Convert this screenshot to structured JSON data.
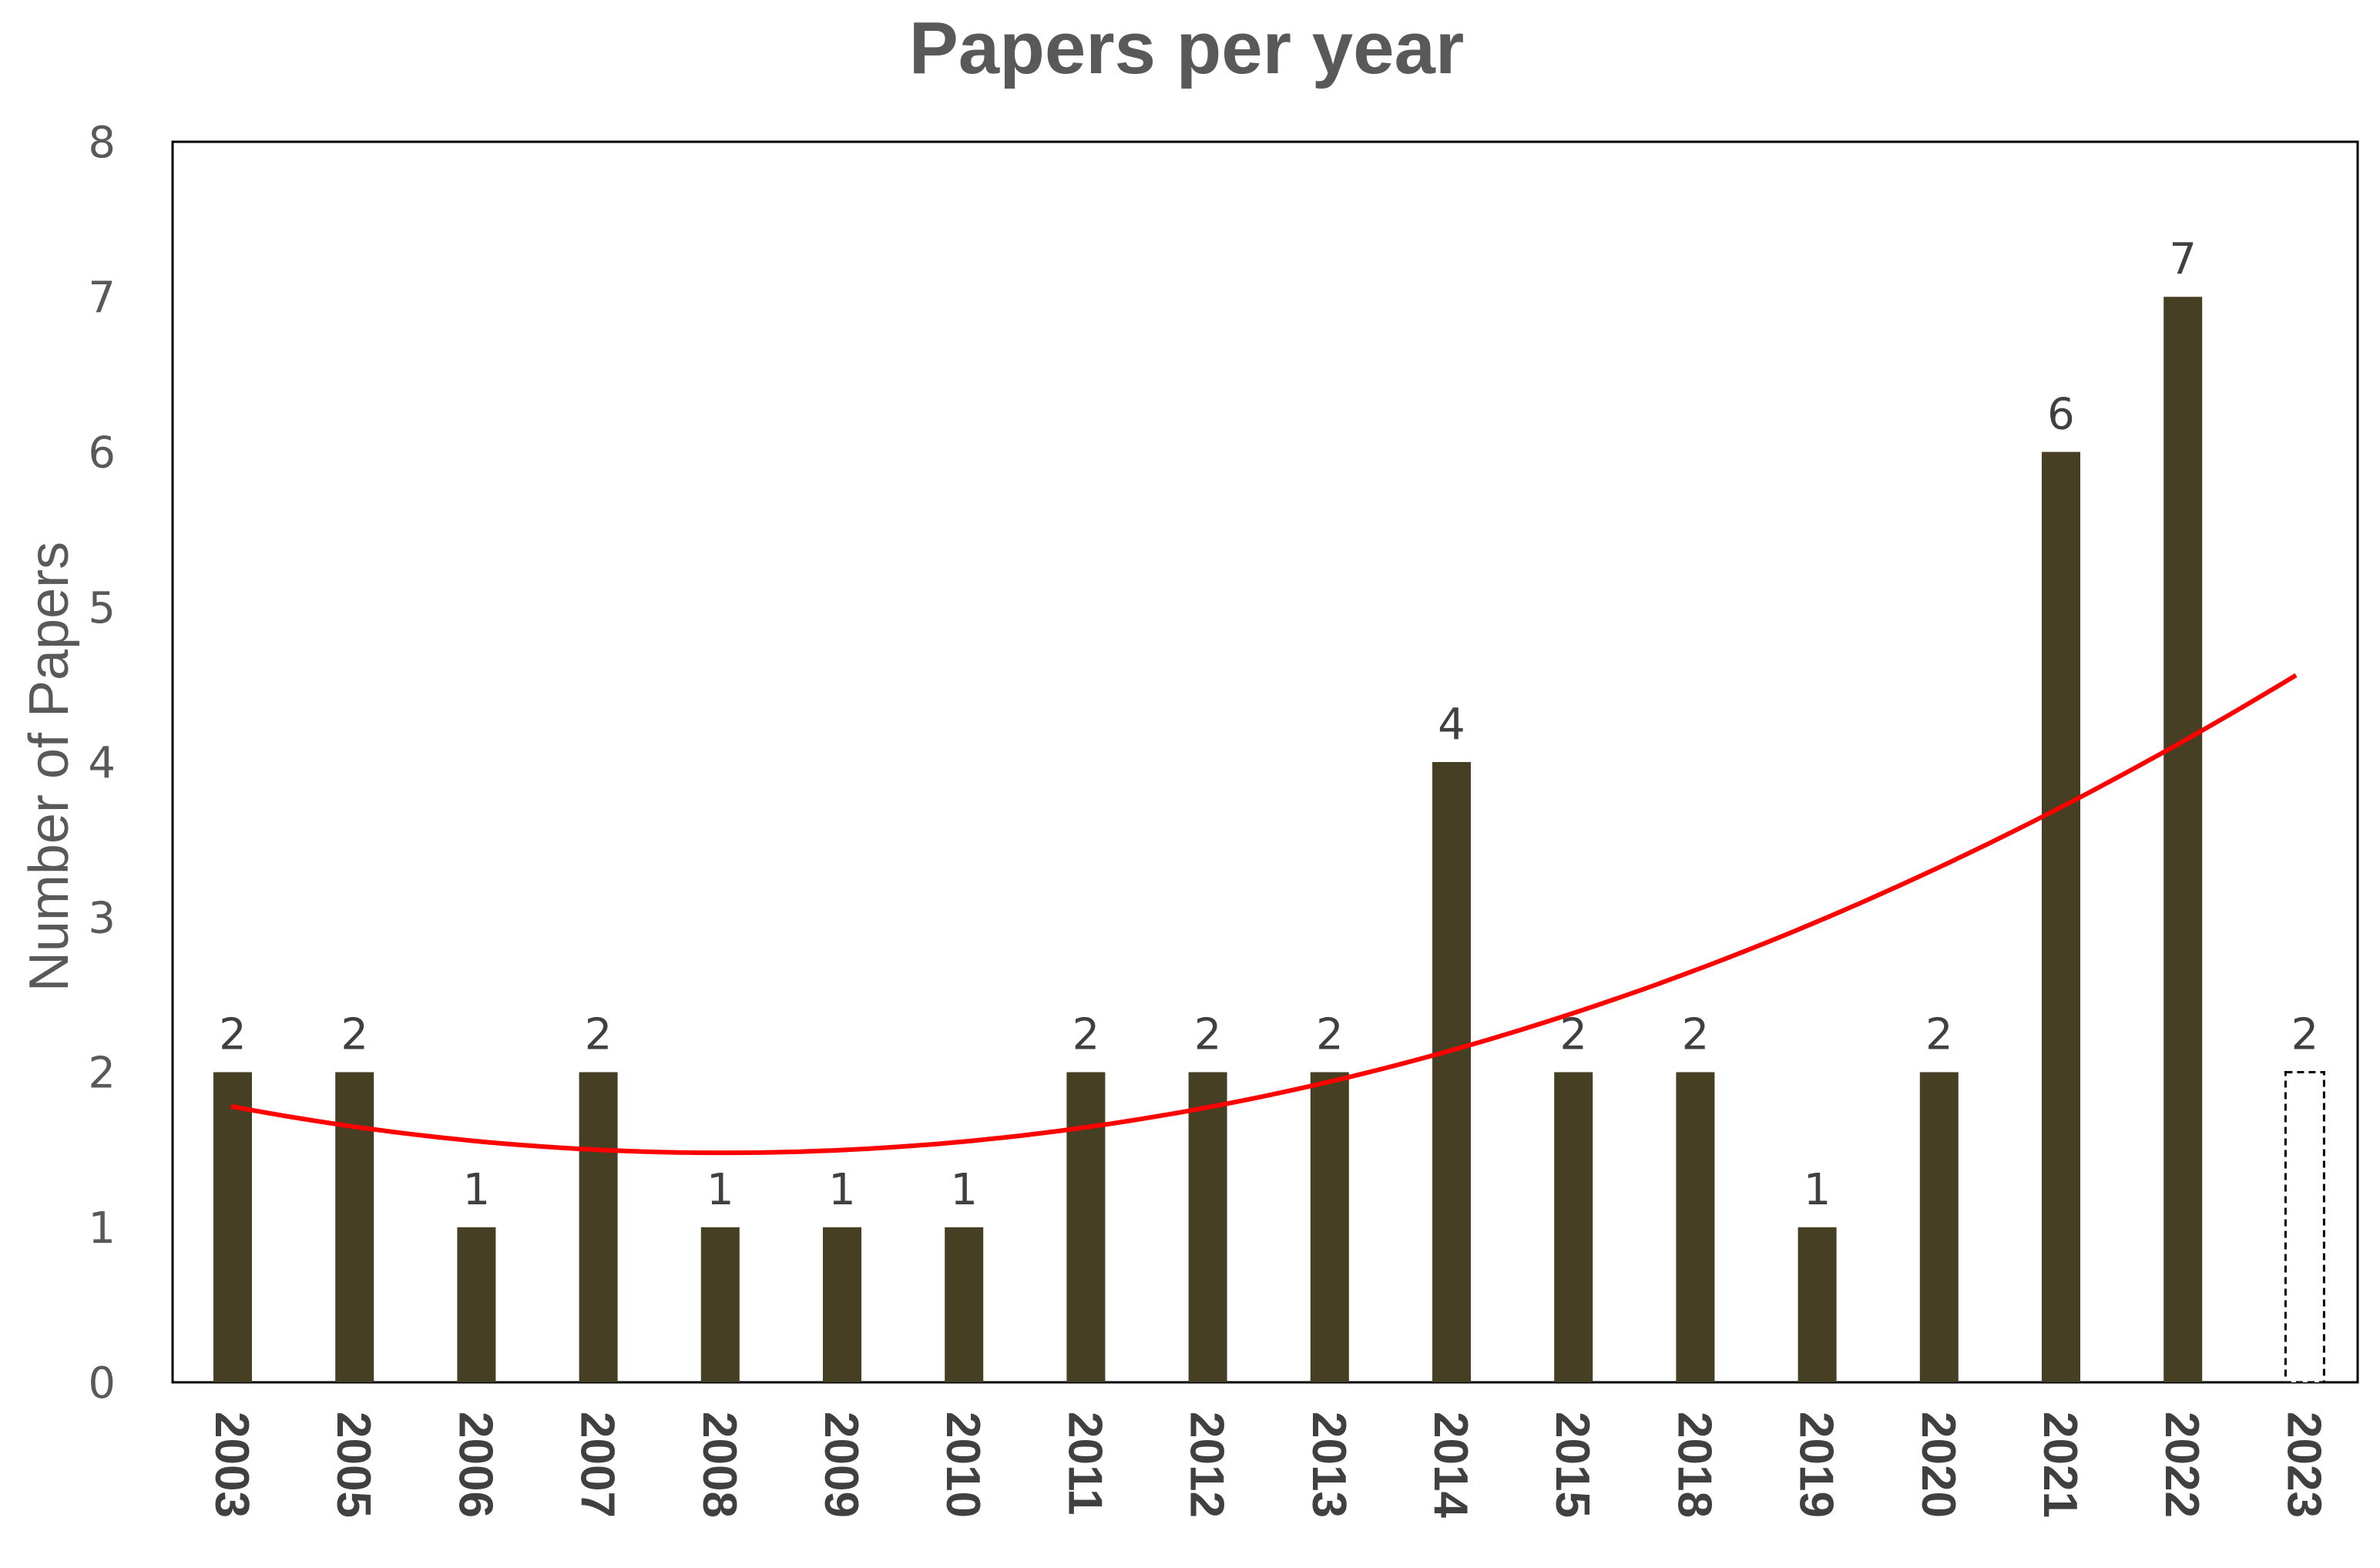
{
  "chart_data": {
    "type": "bar",
    "title": "Papers per year",
    "xlabel": "",
    "ylabel": "Number of Papers",
    "ylim": [
      0,
      8
    ],
    "yticks": [
      0,
      1,
      2,
      3,
      4,
      5,
      6,
      7,
      8
    ],
    "grid": false,
    "legend": "none",
    "categories": [
      "2003",
      "2005",
      "2006",
      "2007",
      "2008",
      "2009",
      "2010",
      "2011",
      "2012",
      "2013",
      "2014",
      "2015",
      "2018",
      "2019",
      "2020",
      "2021",
      "2022",
      "2023"
    ],
    "values": [
      2,
      2,
      1,
      2,
      1,
      1,
      1,
      2,
      2,
      2,
      4,
      2,
      2,
      1,
      2,
      6,
      7,
      2
    ],
    "data_labels": [
      "2",
      "2",
      "1",
      "2",
      "1",
      "1",
      "1",
      "2",
      "2",
      "2",
      "4",
      "2",
      "2",
      "1",
      "2",
      "6",
      "7",
      "2"
    ],
    "bar_styles": [
      "solid",
      "solid",
      "solid",
      "solid",
      "solid",
      "solid",
      "solid",
      "solid",
      "solid",
      "solid",
      "solid",
      "solid",
      "solid",
      "solid",
      "solid",
      "solid",
      "solid",
      "dashed-outline"
    ],
    "bar_color": "#473f24",
    "trendline": {
      "type": "polynomial",
      "order": 2,
      "color": "#ff0000",
      "start_value": 1.78,
      "min_value": 1.48,
      "end_value": 4.56
    }
  }
}
